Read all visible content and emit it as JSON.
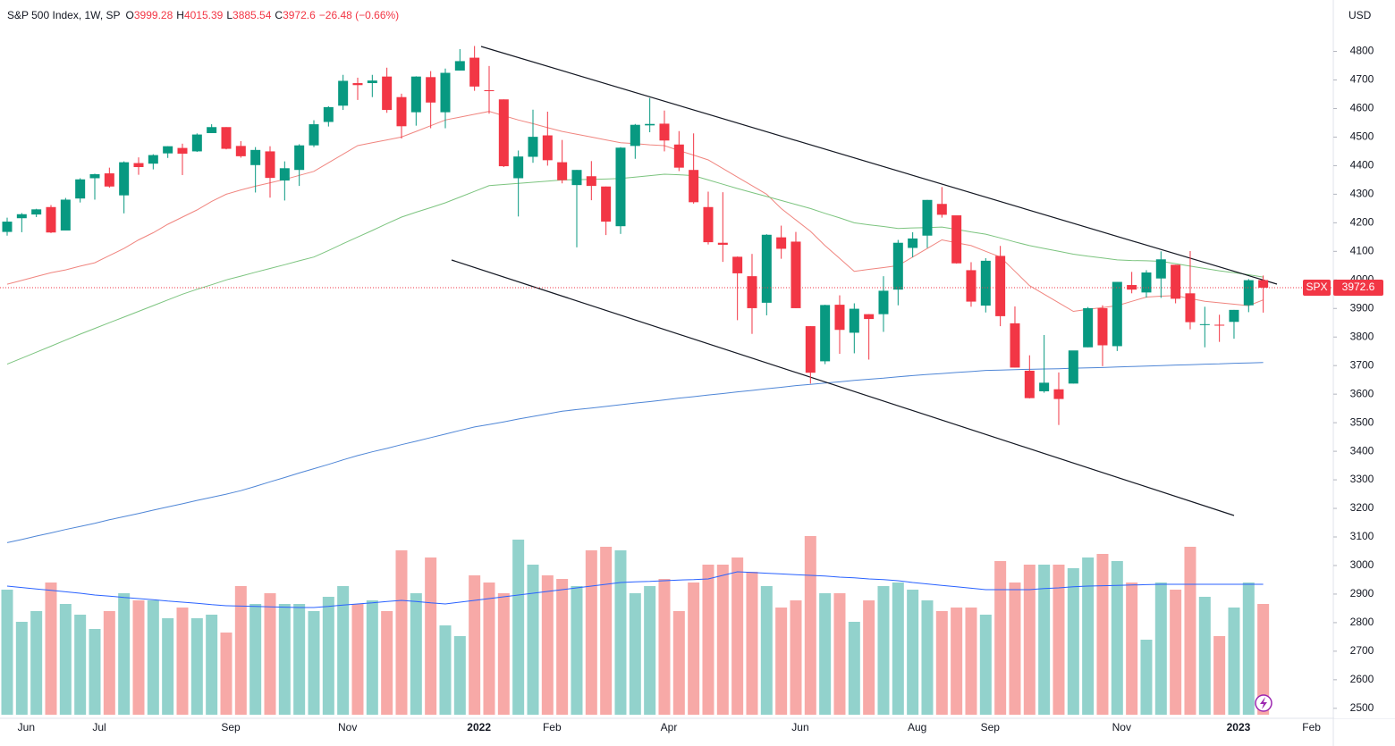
{
  "chart_data": {
    "type": "candlestick",
    "title": "S&P 500 Index, 1W, SP",
    "ohlc_labels": [
      "O",
      "H",
      "L",
      "C"
    ],
    "change_label": "−26.48 (−0.66%)",
    "currency": "USD",
    "symbol": "SPX",
    "categories": [
      null,
      "Jun",
      null,
      null,
      null,
      null,
      "Jul",
      null,
      null,
      null,
      null,
      null,
      null,
      null,
      null,
      "Sep",
      null,
      null,
      null,
      null,
      null,
      null,
      null,
      "Nov",
      null,
      null,
      null,
      null,
      null,
      null,
      null,
      null,
      "2022",
      null,
      null,
      null,
      null,
      "Feb",
      null,
      null,
      null,
      null,
      null,
      null,
      null,
      "Apr",
      null,
      null,
      null,
      null,
      null,
      null,
      null,
      null,
      "Jun",
      null,
      null,
      null,
      null,
      null,
      null,
      null,
      "Aug",
      null,
      null,
      null,
      null,
      "Sep",
      null,
      null,
      null,
      null,
      null,
      null,
      null,
      null,
      "Nov",
      null,
      null,
      null,
      null,
      null,
      null,
      null,
      "2023",
      null,
      null,
      null,
      null,
      "Feb",
      null
    ],
    "open": [
      4168,
      4216,
      4229,
      4255,
      4173,
      4285,
      4356,
      4373,
      4296,
      4409,
      4407,
      4443,
      4462,
      4450,
      4514,
      4535,
      4469,
      4402,
      4450,
      4348,
      4385,
      4471,
      4553,
      4610,
      4689,
      4689,
      4712,
      4640,
      4587,
      4710,
      4587,
      4733,
      4778,
      4664,
      4632,
      4356,
      4431,
      4506,
      4412,
      4332,
      4363,
      4327,
      4188,
      4469,
      4541,
      4547,
      4474,
      4385,
      4255,
      4130,
      4081,
      4013,
      3920,
      4149,
      4134,
      3838,
      3715,
      3913,
      3815,
      3880,
      3880,
      3966,
      4112,
      4155,
      4266,
      4226,
      4034,
      3910,
      4084,
      3848,
      3682,
      3610,
      3617,
      3637,
      3764,
      3901,
      3768,
      3982,
      3956,
      4005,
      4053,
      3953,
      3845,
      3843,
      3853,
      3911,
      3999.28,
      null,
      null,
      null,
      null
    ],
    "high": [
      4218,
      4234,
      4249,
      4262,
      4287,
      4356,
      4372,
      4393,
      4415,
      4429,
      4440,
      4468,
      4477,
      4513,
      4545,
      4535,
      4486,
      4465,
      4468,
      4415,
      4475,
      4559,
      4608,
      4718,
      4708,
      4718,
      4743,
      4652,
      4713,
      4731,
      4740,
      4808,
      4819,
      4749,
      4632,
      4453,
      4596,
      4589,
      4490,
      4385,
      4416,
      4327,
      4465,
      4546,
      4637,
      4593,
      4521,
      4513,
      4309,
      4307,
      4082,
      4091,
      4160,
      4190,
      4168,
      3838,
      3913,
      3946,
      3918,
      3880,
      4013,
      4140,
      4167,
      4280,
      4325,
      4211,
      4062,
      4076,
      4119,
      3907,
      3736,
      3807,
      3676,
      3752,
      3905,
      3911,
      3993,
      4028,
      4034,
      4100,
      4053,
      4101,
      3906,
      3878,
      3895,
      4003,
      4015.39,
      null,
      null,
      null,
      null
    ],
    "low": [
      4155,
      4167,
      4220,
      4164,
      4173,
      4271,
      4281,
      4323,
      4233,
      4368,
      4387,
      4427,
      4367,
      4448,
      4514,
      4457,
      4428,
      4306,
      4288,
      4278,
      4329,
      4465,
      4537,
      4595,
      4630,
      4640,
      4585,
      4495,
      4540,
      4531,
      4531,
      4733,
      4662,
      4582,
      4395,
      4222,
      4410,
      4400,
      4338,
      4114,
      4279,
      4157,
      4161,
      4424,
      4517,
      4450,
      4381,
      4267,
      4124,
      4063,
      3859,
      3811,
      3876,
      4074,
      3901,
      3637,
      3705,
      3741,
      3743,
      3721,
      3818,
      3911,
      4079,
      4112,
      4218,
      4057,
      3906,
      3886,
      3838,
      3693,
      3585,
      3605,
      3492,
      3637,
      3764,
      3698,
      3751,
      3953,
      3938,
      3937,
      3918,
      3827,
      3764,
      3783,
      3794,
      3887,
      3885.54,
      null,
      null,
      null,
      null
    ],
    "close": [
      4204,
      4230,
      4247,
      4166,
      4281,
      4352,
      4370,
      4327,
      4412,
      4395,
      4437,
      4468,
      4442,
      4509,
      4535,
      4459,
      4433,
      4455,
      4357,
      4391,
      4471,
      4545,
      4605,
      4697,
      4682,
      4698,
      4595,
      4538,
      4712,
      4621,
      4725,
      4766,
      4677,
      4663,
      4398,
      4432,
      4501,
      4419,
      4349,
      4385,
      4329,
      4204,
      4463,
      4543,
      4546,
      4488,
      4393,
      4272,
      4132,
      4123,
      4023,
      3901,
      4158,
      4109,
      3901,
      3675,
      3912,
      3825,
      3899,
      3863,
      3962,
      4130,
      4145,
      4280,
      4228,
      4058,
      3924,
      4067,
      3873,
      3693,
      3586,
      3640,
      3583,
      3753,
      3901,
      3771,
      3993,
      3966,
      4026,
      4072,
      3934,
      3852,
      3845,
      3840,
      3895,
      3999,
      3972.6,
      null,
      null,
      null,
      null
    ],
    "up_color": "#089981",
    "down_color": "#f23645",
    "volume": {
      "values": [
        3.5,
        2.6,
        2.9,
        3.7,
        3.1,
        2.8,
        2.4,
        2.9,
        3.4,
        3.2,
        3.2,
        2.7,
        3.0,
        2.7,
        2.8,
        2.3,
        3.6,
        3.1,
        3.4,
        3.1,
        3.1,
        2.9,
        3.3,
        3.6,
        3.1,
        3.2,
        2.9,
        4.6,
        3.4,
        4.4,
        2.5,
        2.2,
        3.9,
        3.7,
        3.4,
        4.9,
        4.2,
        3.9,
        3.8,
        3.6,
        4.6,
        4.7,
        4.6,
        3.4,
        3.6,
        3.8,
        2.9,
        3.7,
        4.2,
        4.2,
        4.4,
        4.0,
        3.6,
        3.0,
        3.2,
        5.0,
        3.4,
        3.4,
        2.6,
        3.2,
        3.6,
        3.7,
        3.5,
        3.2,
        2.9,
        3.0,
        3.0,
        2.8,
        4.3,
        3.7,
        4.2,
        4.2,
        4.2,
        4.1,
        4.4,
        4.5,
        4.3,
        3.7,
        2.1,
        3.7,
        3.5,
        4.7,
        3.3,
        2.2,
        3.0,
        3.7,
        3.1,
        null,
        null,
        null,
        null
      ],
      "up_color": "#92d2cc",
      "down_color": "#f7a9a7",
      "ma_color": "#2962ff",
      "ma_values": [
        3.6,
        3.56,
        3.52,
        3.48,
        3.44,
        3.4,
        3.35,
        3.32,
        3.28,
        3.25,
        3.22,
        3.18,
        3.15,
        3.12,
        3.08,
        3.05,
        3.04,
        3.03,
        3.02,
        3.01,
        3.0,
        3.0,
        3.03,
        3.07,
        3.1,
        3.13,
        3.17,
        3.2,
        3.17,
        3.13,
        3.1,
        3.15,
        3.2,
        3.25,
        3.3,
        3.35,
        3.4,
        3.45,
        3.5,
        3.55,
        3.6,
        3.65,
        3.7,
        3.72,
        3.73,
        3.75,
        3.77,
        3.78,
        3.8,
        3.9,
        4.0,
        3.98,
        3.96,
        3.94,
        3.92,
        3.9,
        3.88,
        3.85,
        3.83,
        3.8,
        3.78,
        3.75,
        3.7,
        3.66,
        3.62,
        3.58,
        3.54,
        3.5,
        3.5,
        3.5,
        3.5,
        3.53,
        3.55,
        3.58,
        3.6,
        3.61,
        3.62,
        3.63,
        3.64,
        3.65,
        3.65,
        3.65,
        3.65,
        3.65,
        3.65,
        3.65,
        3.65,
        null,
        null,
        null,
        null
      ]
    },
    "lines": [
      {
        "color": "#f0857f",
        "values": [
          3985,
          3998,
          4012,
          4025,
          4035,
          4048,
          4060,
          4085,
          4110,
          4140,
          4165,
          4195,
          4220,
          4245,
          4275,
          4300,
          4315,
          4328,
          4340,
          4352,
          4366,
          4380,
          4410,
          4440,
          4470,
          4480,
          4490,
          4500,
          4520,
          4540,
          4560,
          4570,
          4580,
          4590,
          4575,
          4560,
          4547,
          4533,
          4520,
          4510,
          4500,
          4490,
          4480,
          4477,
          4473,
          4470,
          4453,
          4437,
          4420,
          4390,
          4360,
          4330,
          4300,
          4250,
          4210,
          4170,
          4120,
          4075,
          4030,
          4037,
          4043,
          4050,
          4080,
          4110,
          4140,
          4130,
          4120,
          4100,
          4080,
          4030,
          3980,
          3950,
          3920,
          3890,
          3897,
          3903,
          3910,
          3925,
          3940,
          3943,
          3945,
          3935,
          3925,
          3920,
          3915,
          3910,
          3930,
          null,
          null,
          null,
          null
        ]
      },
      {
        "color": "#7cc47f",
        "values": [
          3705,
          3726,
          3747,
          3768,
          3789,
          3810,
          3830,
          3850,
          3870,
          3890,
          3910,
          3930,
          3950,
          3967,
          3983,
          4000,
          4013,
          4027,
          4040,
          4053,
          4067,
          4080,
          4103,
          4127,
          4150,
          4173,
          4197,
          4220,
          4237,
          4253,
          4270,
          4290,
          4310,
          4330,
          4334,
          4338,
          4342,
          4346,
          4350,
          4351,
          4352,
          4353,
          4355,
          4360,
          4365,
          4370,
          4368,
          4365,
          4350,
          4335,
          4320,
          4306,
          4292,
          4278,
          4264,
          4250,
          4233,
          4217,
          4200,
          4193,
          4187,
          4180,
          4182,
          4183,
          4185,
          4177,
          4168,
          4160,
          4147,
          4133,
          4120,
          4110,
          4100,
          4090,
          4083,
          4077,
          4070,
          4068,
          4067,
          4065,
          4057,
          4048,
          4040,
          4032,
          4025,
          4018,
          4010,
          null,
          null,
          null,
          null
        ]
      },
      {
        "color": "#4f86d6",
        "values": [
          3080,
          3091,
          3103,
          3114,
          3126,
          3137,
          3148,
          3160,
          3171,
          3182,
          3194,
          3205,
          3216,
          3228,
          3239,
          3250,
          3262,
          3277,
          3293,
          3308,
          3324,
          3339,
          3354,
          3370,
          3385,
          3398,
          3410,
          3423,
          3435,
          3448,
          3460,
          3473,
          3485,
          3494,
          3503,
          3513,
          3522,
          3531,
          3540,
          3546,
          3551,
          3557,
          3563,
          3569,
          3574,
          3580,
          3586,
          3591,
          3597,
          3602,
          3608,
          3613,
          3619,
          3624,
          3630,
          3634,
          3639,
          3643,
          3648,
          3652,
          3656,
          3661,
          3665,
          3669,
          3672,
          3676,
          3679,
          3683,
          3684,
          3686,
          3687,
          3688,
          3689,
          3691,
          3692,
          3693,
          3695,
          3697,
          3698,
          3700,
          3702,
          3703,
          3705,
          3706,
          3708,
          3709,
          3711,
          null,
          null,
          null,
          null
        ]
      }
    ],
    "ylim": [
      2440,
      4980
    ],
    "yticks": [
      2500,
      2600,
      2700,
      2800,
      2900,
      3000,
      3100,
      3200,
      3300,
      3400,
      3500,
      3600,
      3700,
      3800,
      3900,
      4000,
      4100,
      4200,
      4300,
      4400,
      4500,
      4600,
      4700,
      4800
    ],
    "grid": false
  }
}
